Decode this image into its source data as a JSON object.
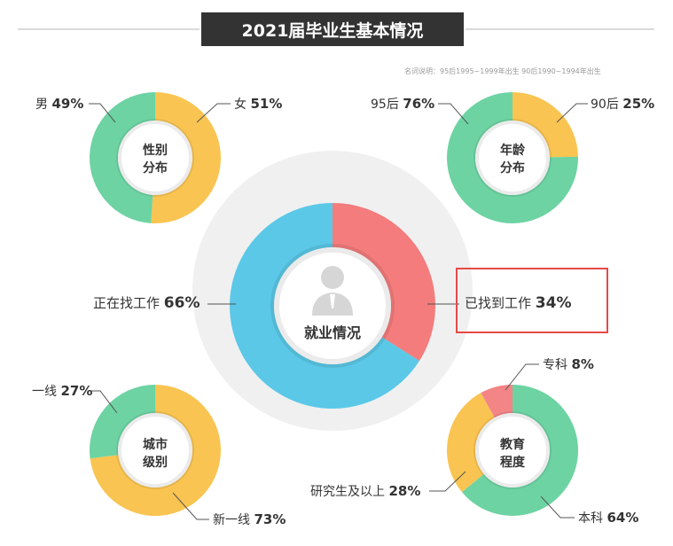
{
  "title": "2021届毕业生基本情况",
  "note": "名词说明：95后1995~1999年出生  90后1990~1994年出生",
  "colors": {
    "yellow": "#f9c451",
    "green": "#6dd3a3",
    "blue": "#5bc8e7",
    "red": "#f47c7c",
    "pink": "#f38586"
  },
  "labels": {
    "male_name": "男",
    "male_pct": "49%",
    "female_name": "女",
    "female_pct": "51%",
    "gen95_name": "95后",
    "gen95_pct": "76%",
    "gen90_name": "90后",
    "gen90_pct": "25%",
    "seeking_name": "正在找工作",
    "seeking_pct": "66%",
    "found_name": "已找到工作",
    "found_pct": "34%",
    "tier1_name": "一线",
    "tier1_pct": "27%",
    "newtier1_name": "新一线",
    "newtier1_pct": "73%",
    "college_name": "专科",
    "college_pct": "8%",
    "grad_name": "研究生及以上",
    "grad_pct": "28%",
    "bachelor_name": "本科",
    "bachelor_pct": "64%",
    "gender_center_1": "性别",
    "gender_center_2": "分布",
    "age_center_1": "年龄",
    "age_center_2": "分布",
    "employment_center": "就业情况",
    "city_center_1": "城市",
    "city_center_2": "级别",
    "edu_center_1": "教育",
    "edu_center_2": "程度"
  },
  "chart_data": [
    {
      "type": "pie",
      "title": "性别分布",
      "slices": [
        {
          "label": "女",
          "value": 51,
          "color": "#f9c451"
        },
        {
          "label": "男",
          "value": 49,
          "color": "#6dd3a3"
        }
      ]
    },
    {
      "type": "pie",
      "title": "年龄分布",
      "slices": [
        {
          "label": "90后",
          "value": 25,
          "color": "#f9c451"
        },
        {
          "label": "95后",
          "value": 76,
          "color": "#6dd3a3"
        }
      ]
    },
    {
      "type": "pie",
      "title": "就业情况",
      "slices": [
        {
          "label": "已找到工作",
          "value": 34,
          "color": "#f47c7c"
        },
        {
          "label": "正在找工作",
          "value": 66,
          "color": "#5bc8e7"
        }
      ]
    },
    {
      "type": "pie",
      "title": "城市级别",
      "slices": [
        {
          "label": "新一线",
          "value": 73,
          "color": "#f9c451"
        },
        {
          "label": "一线",
          "value": 27,
          "color": "#6dd3a3"
        }
      ]
    },
    {
      "type": "pie",
      "title": "教育程度",
      "slices": [
        {
          "label": "本科",
          "value": 64,
          "color": "#6dd3a3"
        },
        {
          "label": "研究生及以上",
          "value": 28,
          "color": "#f9c451"
        },
        {
          "label": "专科",
          "value": 8,
          "color": "#f38586"
        }
      ]
    }
  ]
}
